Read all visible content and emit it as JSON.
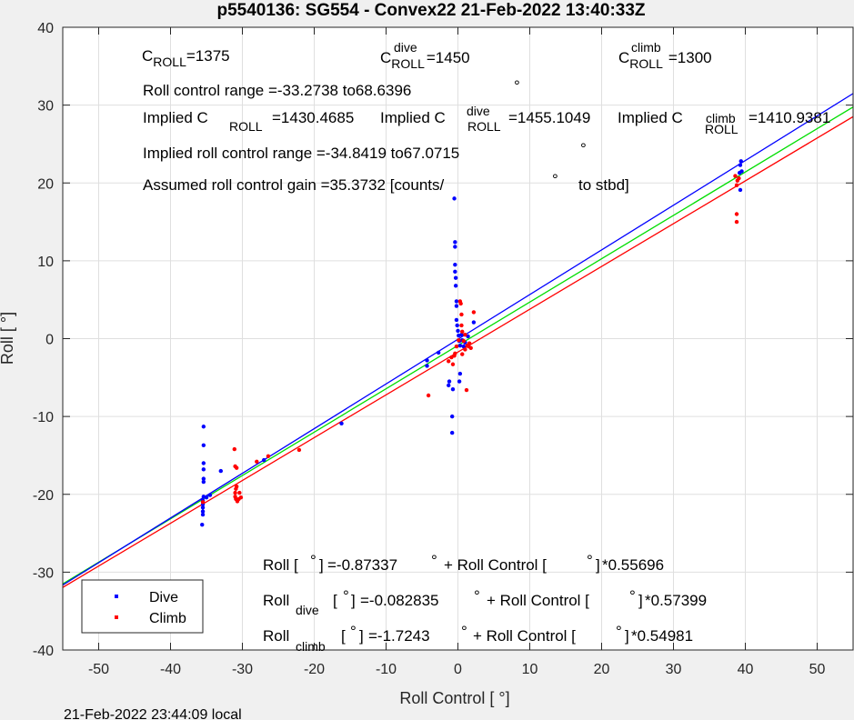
{
  "title": "p5540136: SG554 - Convex22 21-Feb-2022 13:40:33Z",
  "footer": "21-Feb-2022 23:44:09 local",
  "annotations": {
    "c_roll": "=1375",
    "c_roll_dive": "=1450",
    "c_roll_climb": "=1300",
    "roll_range": "Roll control range =-33.2738 to68.6396",
    "implied_c_roll": "=1430.4685",
    "implied_c_roll_dive": "=1455.1049",
    "implied_c_roll_climb": "=1410.9381",
    "implied_range": "Implied roll control range =-34.8419 to67.0715",
    "gain": "Assumed roll control gain =35.3732 [counts/",
    "gain_end": "to stbd]",
    "eq_all": "=-0.87337",
    "eq_all_end": "*0.55696",
    "eq_dive": "=-0.082835",
    "eq_dive_end": "*0.57399",
    "eq_climb": "=-1.7243",
    "eq_climb_end": "*0.54981"
  },
  "chart_data": {
    "type": "scatter",
    "title": "p5540136: SG554 - Convex22 21-Feb-2022 13:40:33Z",
    "xlabel": "Roll Control [   °]",
    "ylabel": "Roll [   °]",
    "xlim": [
      -55,
      55
    ],
    "ylim": [
      -40,
      40
    ],
    "xticks": [
      -50,
      -40,
      -30,
      -20,
      -10,
      0,
      10,
      20,
      30,
      40,
      50
    ],
    "yticks": [
      -40,
      -30,
      -20,
      -10,
      0,
      10,
      20,
      30,
      40
    ],
    "grid": true,
    "legend_position": "bottom-left",
    "colors": {
      "dive": "#0000ff",
      "climb": "#ff0000",
      "all": "#00dd00"
    },
    "fit_lines": [
      {
        "id": "all",
        "intercept": -0.87337,
        "slope": 0.55696,
        "color": "#00dd00"
      },
      {
        "id": "dive",
        "intercept": -0.082835,
        "slope": 0.57399,
        "color": "#0000ff"
      },
      {
        "id": "climb",
        "intercept": -1.7243,
        "slope": 0.54981,
        "color": "#ff0000"
      }
    ],
    "series": [
      {
        "name": "Dive",
        "color": "#0000ff",
        "points": [
          [
            -35.4,
            -11.3
          ],
          [
            -35.4,
            -13.7
          ],
          [
            -35.4,
            -16.0
          ],
          [
            -35.4,
            -16.8
          ],
          [
            -35.4,
            -18.0
          ],
          [
            -35.4,
            -18.4
          ],
          [
            -35.4,
            -20.3
          ],
          [
            -35.5,
            -20.8
          ],
          [
            -35.5,
            -21.3
          ],
          [
            -35.5,
            -21.7
          ],
          [
            -35.5,
            -22.2
          ],
          [
            -35.5,
            -22.6
          ],
          [
            -35.6,
            -23.9
          ],
          [
            -35.0,
            -20.4
          ],
          [
            -34.5,
            -20.1
          ],
          [
            -33.0,
            -17.0
          ],
          [
            -27.0,
            -15.6
          ],
          [
            -4.3,
            -2.8
          ],
          [
            -4.3,
            -3.5
          ],
          [
            -0.8,
            -10.0
          ],
          [
            -0.8,
            -12.1
          ],
          [
            -0.7,
            -6.5
          ],
          [
            -0.5,
            18.0
          ],
          [
            -0.4,
            12.4
          ],
          [
            -0.4,
            11.8
          ],
          [
            -0.4,
            9.5
          ],
          [
            -0.4,
            8.6
          ],
          [
            -0.3,
            7.8
          ],
          [
            -0.3,
            6.8
          ],
          [
            -0.2,
            4.8
          ],
          [
            -0.2,
            4.2
          ],
          [
            -0.2,
            2.4
          ],
          [
            -0.1,
            1.7
          ],
          [
            0.0,
            1.0
          ],
          [
            0.1,
            0.4
          ],
          [
            0.2,
            -0.3
          ],
          [
            0.3,
            -0.9
          ],
          [
            0.5,
            0.5
          ],
          [
            0.6,
            -0.2
          ],
          [
            0.8,
            -1.0
          ],
          [
            0.3,
            -4.5
          ],
          [
            0.2,
            -5.5
          ],
          [
            -1.2,
            -5.5
          ],
          [
            -1.3,
            -6.0
          ],
          [
            1.0,
            -0.5
          ],
          [
            1.4,
            0.3
          ],
          [
            2.2,
            2.1
          ],
          [
            -2.7,
            -1.8
          ],
          [
            -16.2,
            -10.9
          ],
          [
            39.2,
            21.3
          ],
          [
            39.3,
            22.3
          ],
          [
            39.4,
            22.8
          ],
          [
            39.3,
            19.1
          ],
          [
            39.5,
            21.5
          ]
        ]
      },
      {
        "name": "Climb",
        "color": "#ff0000",
        "points": [
          [
            -35.5,
            -21.0
          ],
          [
            -31.1,
            -14.2
          ],
          [
            -31.0,
            -16.4
          ],
          [
            -30.8,
            -16.6
          ],
          [
            -30.8,
            -19.0
          ],
          [
            -30.9,
            -19.3
          ],
          [
            -31.0,
            -19.8
          ],
          [
            -31.0,
            -20.3
          ],
          [
            -30.9,
            -20.6
          ],
          [
            -30.7,
            -20.9
          ],
          [
            -30.5,
            -20.6
          ],
          [
            -30.4,
            -19.8
          ],
          [
            -30.2,
            -20.4
          ],
          [
            -28.0,
            -15.8
          ],
          [
            -26.4,
            -15.1
          ],
          [
            -22.1,
            -14.3
          ],
          [
            -4.1,
            -7.3
          ],
          [
            -1.3,
            -2.9
          ],
          [
            -0.9,
            -2.4
          ],
          [
            -0.7,
            -3.3
          ],
          [
            -0.4,
            -1.9
          ],
          [
            -0.2,
            -1.0
          ],
          [
            0.1,
            -0.2
          ],
          [
            0.3,
            4.8
          ],
          [
            0.4,
            4.5
          ],
          [
            0.5,
            3.1
          ],
          [
            0.5,
            1.7
          ],
          [
            0.6,
            0.9
          ],
          [
            0.8,
            -0.3
          ],
          [
            1.0,
            -1.4
          ],
          [
            1.3,
            -0.9
          ],
          [
            1.6,
            -0.6
          ],
          [
            1.8,
            -1.2
          ],
          [
            2.2,
            3.4
          ],
          [
            1.2,
            -6.6
          ],
          [
            0.6,
            -2.0
          ],
          [
            1.0,
            0.5
          ],
          [
            -0.5,
            -2.2
          ],
          [
            1.5,
            -1.0
          ],
          [
            38.8,
            16.0
          ],
          [
            38.8,
            15.0
          ],
          [
            38.8,
            19.7
          ],
          [
            38.9,
            20.3
          ],
          [
            38.6,
            20.9
          ],
          [
            39.1,
            20.6
          ]
        ]
      }
    ]
  }
}
